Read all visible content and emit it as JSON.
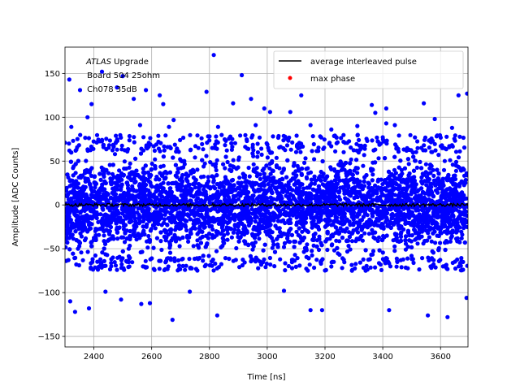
{
  "chart_data": {
    "type": "scatter",
    "title": "",
    "xlabel": "Time [ns]",
    "ylabel": "Amplitude [ADC Counts]",
    "xlim": [
      2300,
      3695
    ],
    "ylim": [
      -162,
      180
    ],
    "x_ticks": [
      2400,
      2600,
      2800,
      3000,
      3200,
      3400,
      3600
    ],
    "y_ticks": [
      -150,
      -100,
      -50,
      0,
      50,
      100,
      150
    ],
    "grid": true,
    "legend_position": "top-right",
    "annotation": {
      "line1_italic": "ATLAS",
      "line1_rest": " Upgrade",
      "line2": " Board 504 25ohm",
      "line3": " Ch078 35dB"
    },
    "series": [
      {
        "name": "",
        "style": "markers",
        "color": "#0000ff",
        "description_band": {
          "y_range_dense": [
            -60,
            60
          ],
          "y_range_sparse": [
            -75,
            80
          ]
        },
        "outliers": [
          [
            2315,
            143
          ],
          [
            2322,
            89
          ],
          [
            2352,
            131
          ],
          [
            2378,
            100
          ],
          [
            2392,
            115
          ],
          [
            2428,
            152
          ],
          [
            2480,
            134
          ],
          [
            2500,
            147
          ],
          [
            2538,
            121
          ],
          [
            2560,
            91
          ],
          [
            2580,
            131
          ],
          [
            2628,
            125
          ],
          [
            2640,
            115
          ],
          [
            2660,
            89
          ],
          [
            2676,
            97
          ],
          [
            2790,
            129
          ],
          [
            2815,
            171
          ],
          [
            2830,
            89
          ],
          [
            2882,
            116
          ],
          [
            2912,
            148
          ],
          [
            2944,
            121
          ],
          [
            2960,
            91
          ],
          [
            2990,
            110
          ],
          [
            3010,
            106
          ],
          [
            3080,
            106
          ],
          [
            3118,
            125
          ],
          [
            3150,
            91
          ],
          [
            3222,
            86
          ],
          [
            3312,
            90
          ],
          [
            3362,
            114
          ],
          [
            3374,
            105
          ],
          [
            3412,
            93
          ],
          [
            3412,
            110
          ],
          [
            3442,
            91
          ],
          [
            3542,
            116
          ],
          [
            3580,
            98
          ],
          [
            3640,
            88
          ],
          [
            3662,
            125
          ],
          [
            3692,
            127
          ],
          [
            2318,
            -110
          ],
          [
            2335,
            -122
          ],
          [
            2383,
            -118
          ],
          [
            2440,
            -99
          ],
          [
            2494,
            -108
          ],
          [
            2564,
            -113
          ],
          [
            2594,
            -112
          ],
          [
            2672,
            -131
          ],
          [
            2732,
            -99
          ],
          [
            2827,
            -126
          ],
          [
            3058,
            -98
          ],
          [
            3150,
            -120
          ],
          [
            3190,
            -120
          ],
          [
            3422,
            -120
          ],
          [
            3556,
            -126
          ],
          [
            3624,
            -128
          ],
          [
            3690,
            -106
          ]
        ]
      },
      {
        "name": "average interleaved pulse",
        "style": "line",
        "color": "#000000",
        "y_level": 0
      },
      {
        "name": "max phase",
        "style": "markers",
        "color": "#ff0000"
      }
    ]
  }
}
